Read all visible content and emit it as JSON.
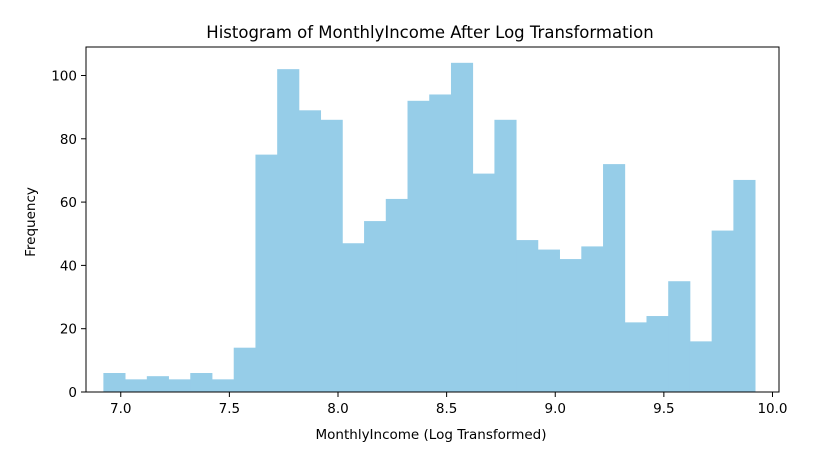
{
  "chart_data": {
    "type": "bar",
    "title": "Histogram of MonthlyIncome After Log Transformation",
    "xlabel": "MonthlyIncome (Log Transformed)",
    "ylabel": "Frequency",
    "xlim": [
      6.84,
      10.03
    ],
    "ylim": [
      0,
      109
    ],
    "bin_start": 6.92,
    "bin_width": 0.1,
    "values": [
      6,
      4,
      5,
      4,
      6,
      4,
      14,
      75,
      102,
      89,
      86,
      47,
      54,
      61,
      92,
      94,
      104,
      69,
      86,
      48,
      45,
      42,
      46,
      72,
      22,
      24,
      35,
      16,
      51,
      67
    ],
    "xticks": [
      7.0,
      7.5,
      8.0,
      8.5,
      9.0,
      9.5,
      10.0
    ],
    "xtick_labels": [
      "7.0",
      "7.5",
      "8.0",
      "8.5",
      "9.0",
      "9.5",
      "10.0"
    ],
    "yticks": [
      0,
      20,
      40,
      60,
      80,
      100
    ],
    "ytick_labels": [
      "0",
      "20",
      "40",
      "60",
      "80",
      "100"
    ],
    "grid": false,
    "legend": false,
    "bar_color": "#96cde8"
  }
}
